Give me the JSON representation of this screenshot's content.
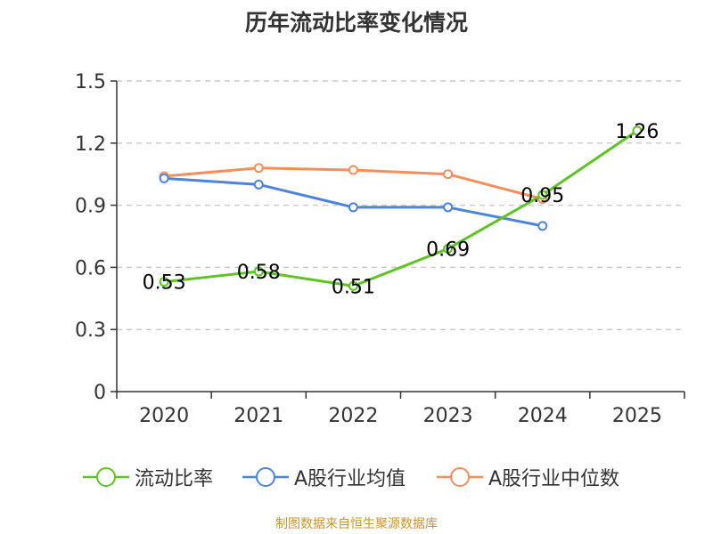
{
  "chart_data": {
    "type": "line",
    "title": "历年流动比率变化情况",
    "categories": [
      "2020",
      "2021",
      "2022",
      "2023",
      "2024",
      "2025"
    ],
    "ylim": [
      0,
      1.5
    ],
    "yticks": [
      "0",
      "0.3",
      "0.6",
      "0.9",
      "1.2",
      "1.5"
    ],
    "grid": true,
    "legend_position": "bottom",
    "series": [
      {
        "name": "流动比率",
        "color": "#5ec423",
        "values": [
          0.53,
          0.58,
          0.51,
          0.69,
          0.95,
          1.26
        ],
        "labels": [
          "0.53",
          "0.58",
          "0.51",
          "0.69",
          "0.95",
          "1.26"
        ]
      },
      {
        "name": "A股行业均值",
        "color": "#4c84dc",
        "values": [
          1.03,
          1.0,
          0.89,
          0.89,
          0.8,
          null
        ]
      },
      {
        "name": "A股行业中位数",
        "color": "#f48f5c",
        "values": [
          1.04,
          1.08,
          1.07,
          1.05,
          0.93,
          null
        ]
      }
    ]
  },
  "source_note": "制图数据来自恒生聚源数据库"
}
